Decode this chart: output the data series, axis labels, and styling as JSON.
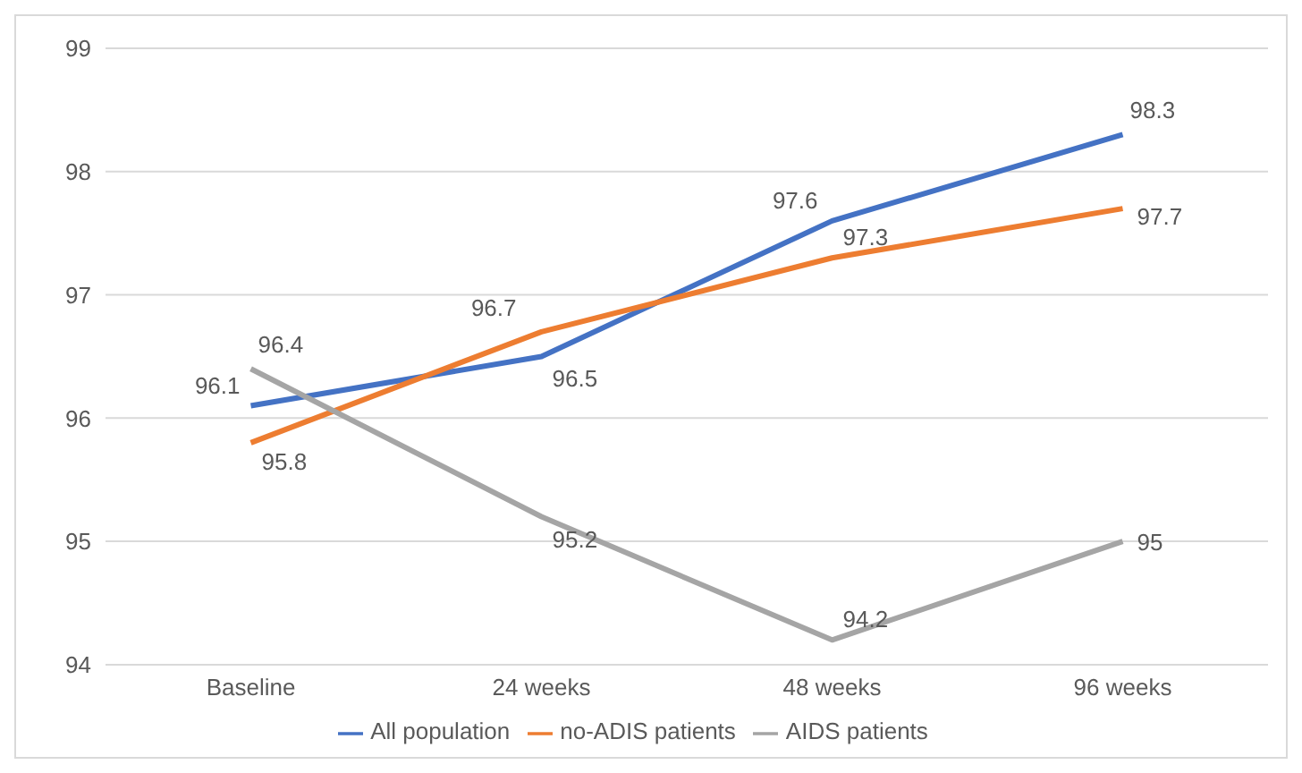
{
  "chart_data": {
    "type": "line",
    "categories": [
      "Baseline",
      "24 weeks",
      "48 weeks",
      "96 weeks"
    ],
    "series": [
      {
        "name": "All population",
        "color": "#4472c4",
        "values": [
          96.1,
          96.5,
          97.6,
          98.3
        ]
      },
      {
        "name": "no-ADIS patients",
        "color": "#ed7d31",
        "values": [
          95.8,
          96.7,
          97.3,
          97.7
        ]
      },
      {
        "name": "AIDS patients",
        "color": "#a5a5a5",
        "values": [
          96.4,
          95.2,
          94.2,
          95
        ]
      }
    ],
    "ylim": [
      94,
      99
    ],
    "yticks": [
      94,
      95,
      96,
      97,
      98,
      99
    ],
    "grid": "y",
    "legend": "bottom",
    "marker": "none",
    "line_style": "solid",
    "data_labels": true
  }
}
